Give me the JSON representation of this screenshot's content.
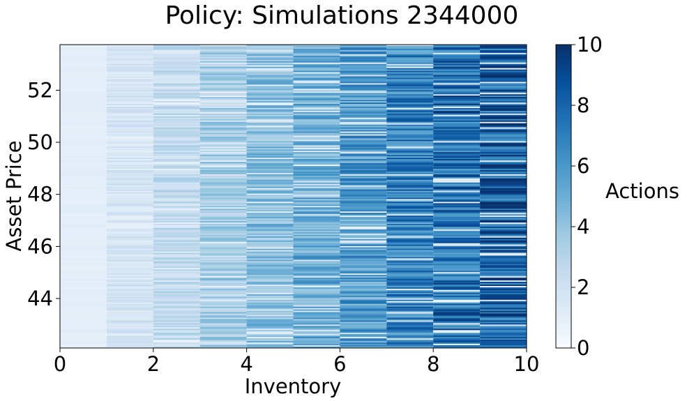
{
  "chart_data": {
    "type": "heatmap",
    "title": "Policy: Simulations 2344000",
    "xlabel": "Inventory",
    "ylabel": "Asset Price",
    "xlim": [
      0,
      10
    ],
    "ylim": [
      42.1,
      53.75
    ],
    "x_ticks": [
      0,
      2,
      4,
      6,
      8,
      10
    ],
    "y_ticks": [
      44,
      46,
      48,
      50,
      52
    ],
    "x_columns": [
      0,
      1,
      2,
      3,
      4,
      5,
      6,
      7,
      8,
      9
    ],
    "mean_action_by_inventory": [
      1.0,
      1.7,
      2.6,
      3.5,
      4.3,
      5.0,
      5.8,
      6.9,
      7.6,
      8.3
    ],
    "colorbar": {
      "label": "Actions",
      "range": [
        0,
        10
      ],
      "ticks": [
        0,
        2,
        4,
        6,
        8,
        10
      ],
      "colormap": "Blues"
    }
  }
}
